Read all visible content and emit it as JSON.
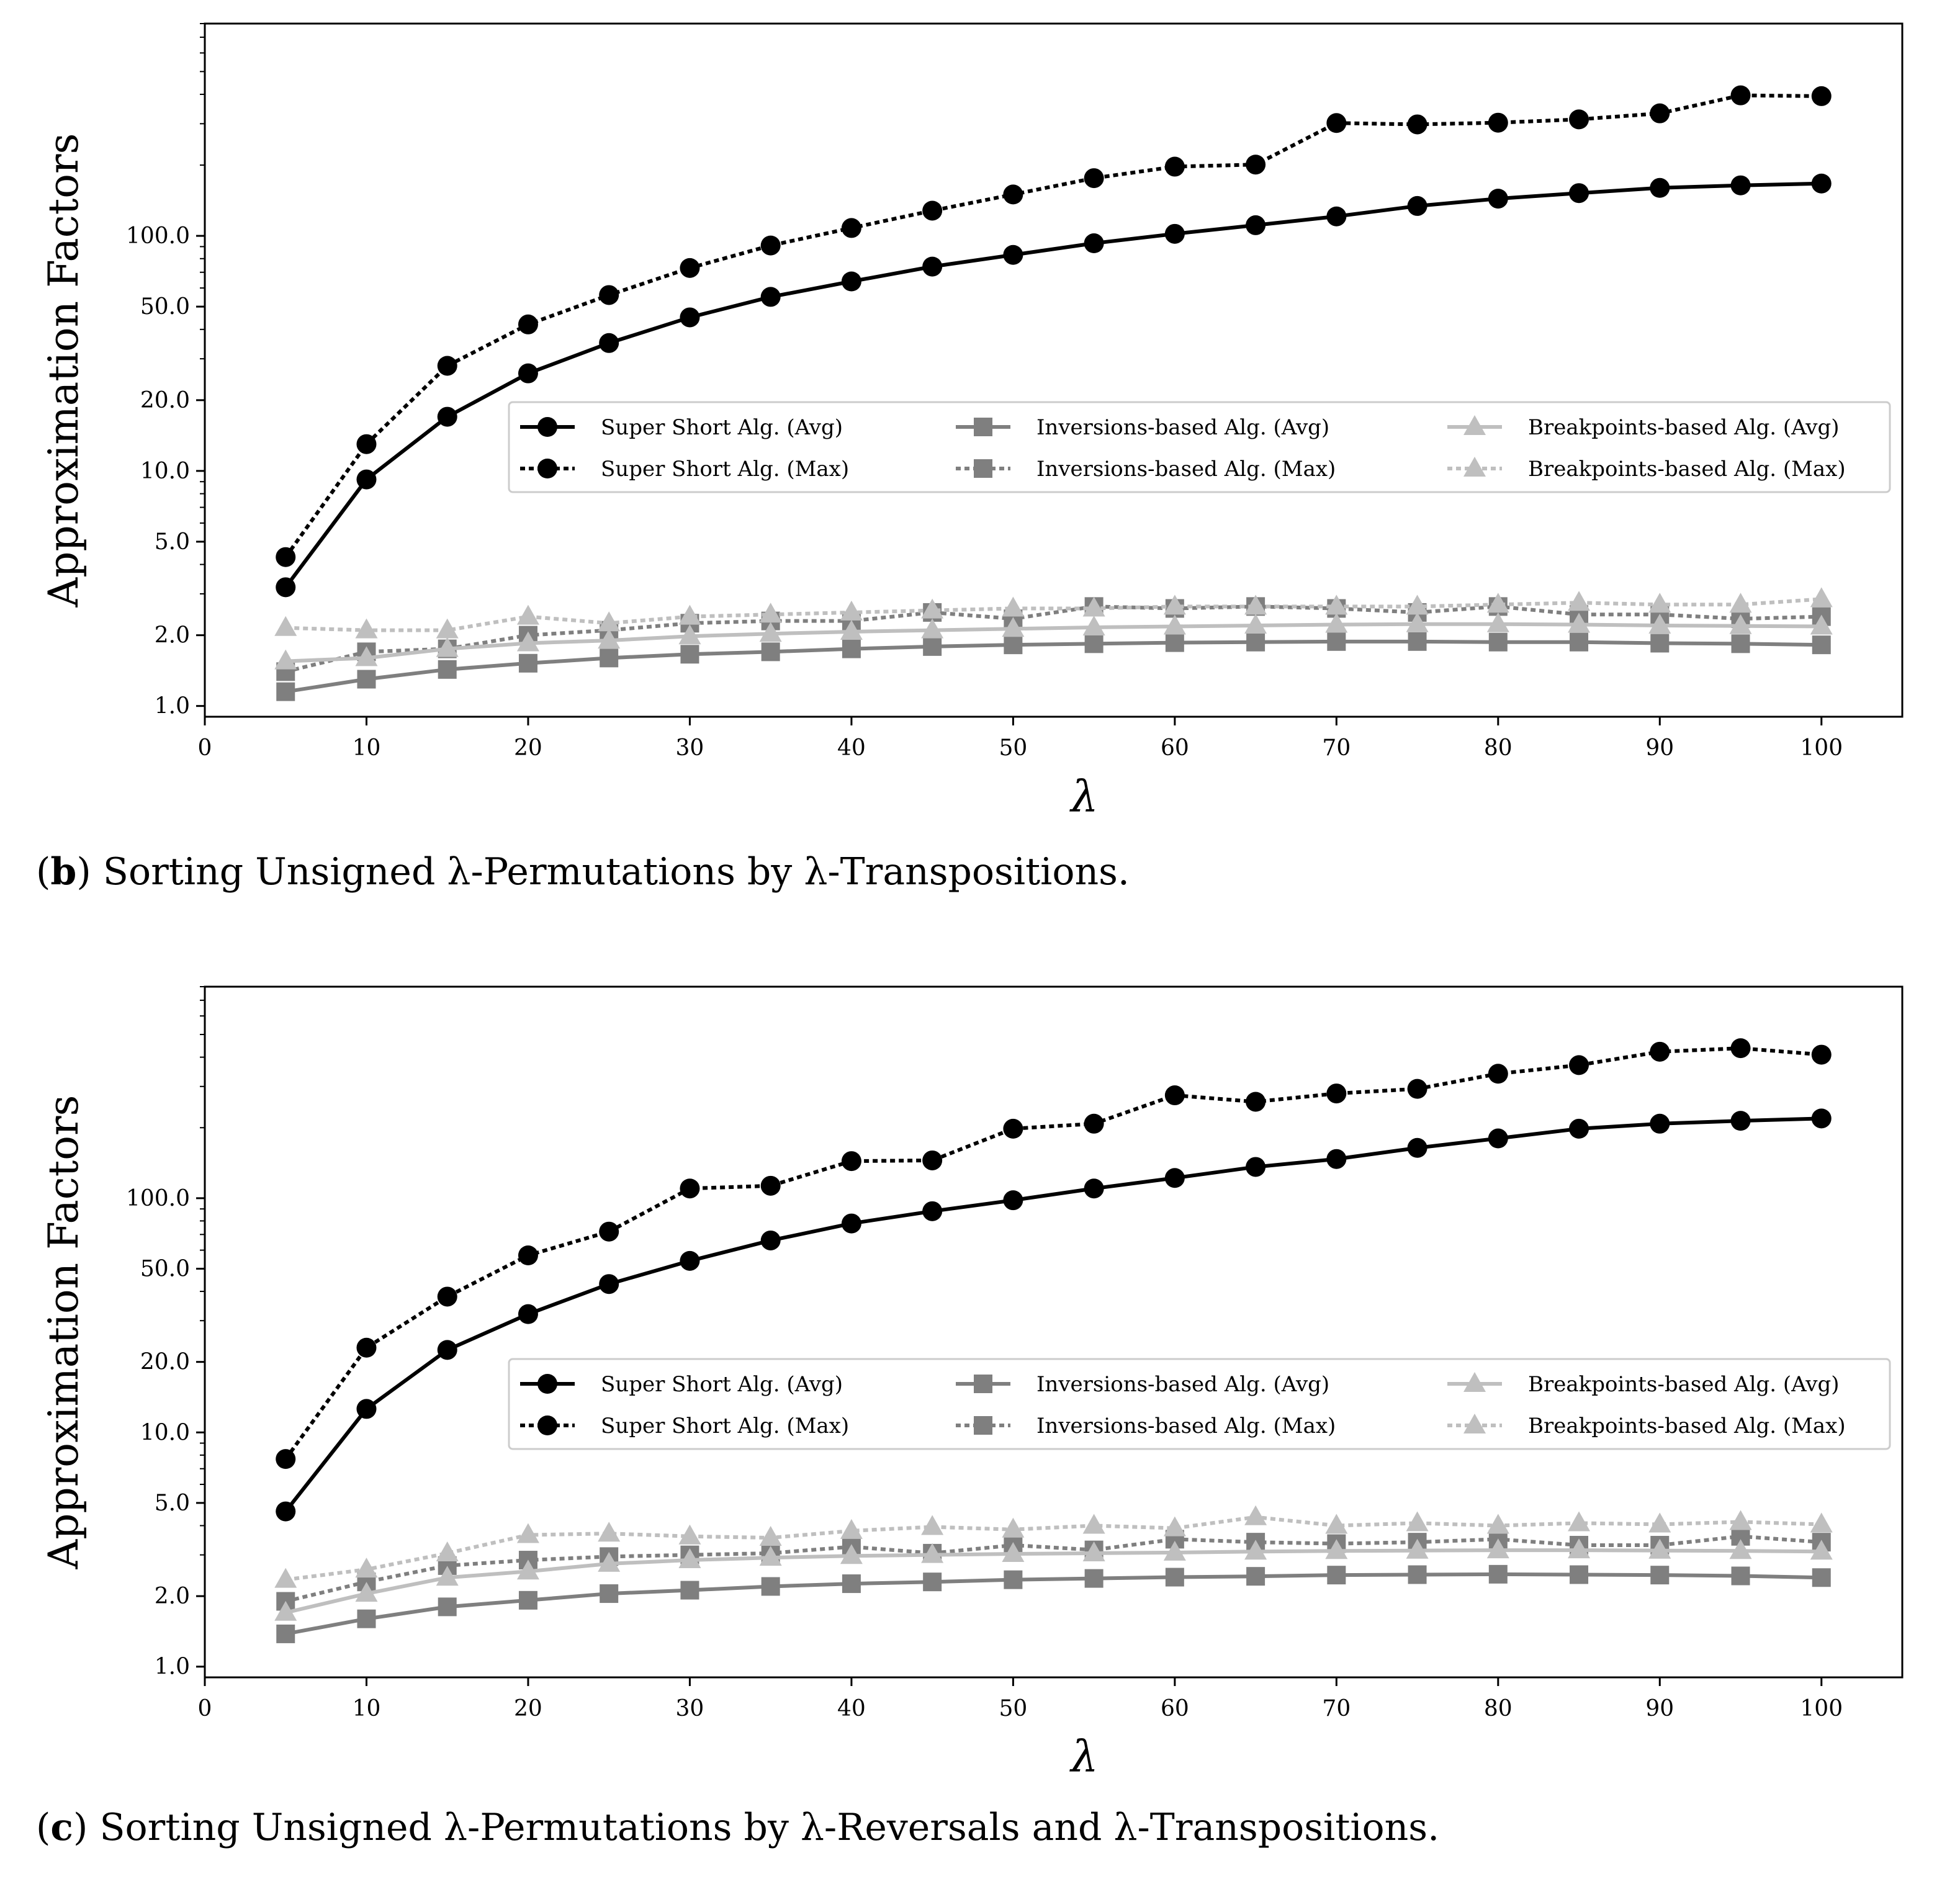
{
  "chart_data": [
    {
      "id": "b",
      "type": "line",
      "y_scale": "log",
      "ylabel": "Approximation Factors",
      "xlabel": "λ",
      "xlim": [
        0,
        105
      ],
      "ylim": [
        0.9,
        800
      ],
      "x_ticks": [
        0,
        10,
        20,
        30,
        40,
        50,
        60,
        70,
        80,
        90,
        100
      ],
      "y_ticks": [
        1.0,
        2.0,
        5.0,
        10.0,
        20.0,
        50.0,
        100.0
      ],
      "y_tick_labels": [
        "1.0",
        "2.0",
        "5.0",
        "10.0",
        "20.0",
        "50.0",
        "100.0"
      ],
      "x_tick_labels": [
        "0",
        "10",
        "20",
        "30",
        "40",
        "50",
        "60",
        "70",
        "80",
        "90",
        "100"
      ],
      "legend_position": "center-right",
      "x": [
        5,
        10,
        15,
        20,
        25,
        30,
        35,
        40,
        45,
        50,
        55,
        60,
        65,
        70,
        75,
        80,
        85,
        90,
        95,
        100
      ],
      "series": [
        {
          "name": "Super Short Alg. (Avg)",
          "color": "#000000",
          "marker": "circle",
          "dash": "solid",
          "values": [
            3.2,
            9.2,
            17,
            26,
            35,
            45,
            55,
            64,
            74,
            83,
            93,
            102,
            111,
            121,
            134,
            144,
            152,
            160,
            164,
            167
          ]
        },
        {
          "name": "Super Short Alg. (Max)",
          "color": "#000000",
          "marker": "circle",
          "dash": "dotted",
          "values": [
            4.3,
            13,
            28,
            42,
            56,
            73,
            91,
            108,
            128,
            150,
            176,
            197,
            201,
            302,
            298,
            303,
            313,
            332,
            396,
            393
          ]
        },
        {
          "name": "Inversions-based Alg. (Avg)",
          "color": "#7f7f7f",
          "marker": "square",
          "dash": "solid",
          "values": [
            1.15,
            1.3,
            1.43,
            1.52,
            1.6,
            1.66,
            1.7,
            1.75,
            1.79,
            1.82,
            1.84,
            1.86,
            1.87,
            1.88,
            1.88,
            1.87,
            1.87,
            1.85,
            1.84,
            1.82
          ]
        },
        {
          "name": "Inversions-based Alg. (Max)",
          "color": "#7f7f7f",
          "marker": "square",
          "dash": "dotted",
          "values": [
            1.4,
            1.7,
            1.75,
            2.0,
            2.1,
            2.25,
            2.3,
            2.3,
            2.5,
            2.35,
            2.65,
            2.6,
            2.65,
            2.6,
            2.5,
            2.65,
            2.45,
            2.45,
            2.35,
            2.4
          ]
        },
        {
          "name": "Breakpoints-based Alg. (Avg)",
          "color": "#bfbfbf",
          "marker": "triangle",
          "dash": "solid",
          "values": [
            1.55,
            1.6,
            1.75,
            1.85,
            1.9,
            1.98,
            2.03,
            2.07,
            2.1,
            2.13,
            2.16,
            2.18,
            2.2,
            2.22,
            2.23,
            2.23,
            2.22,
            2.2,
            2.19,
            2.18
          ]
        },
        {
          "name": "Breakpoints-based Alg. (Max)",
          "color": "#bfbfbf",
          "marker": "triangle",
          "dash": "dotted",
          "values": [
            2.15,
            2.1,
            2.1,
            2.4,
            2.25,
            2.4,
            2.45,
            2.5,
            2.55,
            2.6,
            2.6,
            2.65,
            2.65,
            2.65,
            2.65,
            2.7,
            2.75,
            2.7,
            2.7,
            2.85
          ]
        }
      ]
    },
    {
      "id": "c",
      "type": "line",
      "y_scale": "log",
      "ylabel": "Approximation Factors",
      "xlabel": "λ",
      "xlim": [
        0,
        105
      ],
      "ylim": [
        0.9,
        800
      ],
      "x_ticks": [
        0,
        10,
        20,
        30,
        40,
        50,
        60,
        70,
        80,
        90,
        100
      ],
      "y_ticks": [
        1.0,
        2.0,
        5.0,
        10.0,
        20.0,
        50.0,
        100.0
      ],
      "y_tick_labels": [
        "1.0",
        "2.0",
        "5.0",
        "10.0",
        "20.0",
        "50.0",
        "100.0"
      ],
      "x_tick_labels": [
        "0",
        "10",
        "20",
        "30",
        "40",
        "50",
        "60",
        "70",
        "80",
        "90",
        "100"
      ],
      "legend_position": "center-right",
      "x": [
        5,
        10,
        15,
        20,
        25,
        30,
        35,
        40,
        45,
        50,
        55,
        60,
        65,
        70,
        75,
        80,
        85,
        90,
        95,
        100
      ],
      "series": [
        {
          "name": "Super Short Alg. (Avg)",
          "color": "#000000",
          "marker": "circle",
          "dash": "solid",
          "values": [
            4.6,
            12.6,
            22.5,
            32,
            43,
            54,
            66,
            78,
            88,
            98,
            110,
            122,
            136,
            147,
            164,
            180,
            198,
            208,
            214,
            219
          ]
        },
        {
          "name": "Super Short Alg. (Max)",
          "color": "#000000",
          "marker": "circle",
          "dash": "dotted",
          "values": [
            7.7,
            23,
            38,
            57,
            72,
            110,
            113,
            144,
            145,
            198,
            208,
            275,
            258,
            280,
            293,
            340,
            370,
            422,
            437,
            410
          ]
        },
        {
          "name": "Inversions-based Alg. (Avg)",
          "color": "#7f7f7f",
          "marker": "square",
          "dash": "solid",
          "values": [
            1.38,
            1.6,
            1.8,
            1.92,
            2.05,
            2.12,
            2.2,
            2.26,
            2.3,
            2.35,
            2.38,
            2.41,
            2.43,
            2.46,
            2.47,
            2.48,
            2.47,
            2.46,
            2.44,
            2.4
          ]
        },
        {
          "name": "Inversions-based Alg. (Max)",
          "color": "#7f7f7f",
          "marker": "square",
          "dash": "dotted",
          "values": [
            1.9,
            2.3,
            2.7,
            2.85,
            2.95,
            3.0,
            3.05,
            3.25,
            3.05,
            3.3,
            3.15,
            3.5,
            3.4,
            3.35,
            3.4,
            3.5,
            3.3,
            3.3,
            3.6,
            3.4
          ]
        },
        {
          "name": "Breakpoints-based Alg. (Avg)",
          "color": "#bfbfbf",
          "marker": "triangle",
          "dash": "solid",
          "values": [
            1.7,
            2.05,
            2.4,
            2.55,
            2.75,
            2.85,
            2.92,
            2.97,
            3.0,
            3.03,
            3.05,
            3.07,
            3.1,
            3.12,
            3.13,
            3.14,
            3.14,
            3.13,
            3.12,
            3.1
          ]
        },
        {
          "name": "Breakpoints-based Alg. (Max)",
          "color": "#bfbfbf",
          "marker": "triangle",
          "dash": "dotted",
          "values": [
            2.35,
            2.6,
            3.05,
            3.65,
            3.7,
            3.6,
            3.55,
            3.8,
            3.95,
            3.85,
            4.0,
            3.9,
            4.35,
            4.0,
            4.1,
            4.0,
            4.1,
            4.05,
            4.15,
            4.05
          ]
        }
      ]
    }
  ],
  "captions": [
    {
      "label": "b",
      "text": "Sorting Unsigned λ-Permutations by λ-Transpositions."
    },
    {
      "label": "c",
      "text": "Sorting Unsigned λ-Permutations by λ-Reversals and λ-Transpositions."
    }
  ]
}
